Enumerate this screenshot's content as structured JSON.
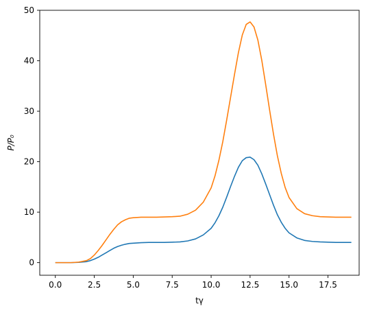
{
  "chart_data": {
    "type": "line",
    "title": "",
    "xlabel": "tγ",
    "ylabel": "P/P₀",
    "xlim": [
      -1,
      19.5
    ],
    "ylim": [
      -2.5,
      50
    ],
    "grid": false,
    "legend": "none",
    "x_ticks": [
      0,
      2.5,
      5,
      7.5,
      10,
      12.5,
      15,
      17.5
    ],
    "x_tick_labels": [
      "0.0",
      "2.5",
      "5.0",
      "7.5",
      "10.0",
      "12.5",
      "15.0",
      "17.5"
    ],
    "y_ticks": [
      0,
      10,
      20,
      30,
      40,
      50
    ],
    "y_tick_labels": [
      "0",
      "10",
      "20",
      "30",
      "40",
      "50"
    ],
    "x": [
      0,
      0.5,
      1,
      1.5,
      2,
      2.25,
      2.5,
      2.75,
      3,
      3.25,
      3.5,
      3.75,
      4,
      4.25,
      4.5,
      4.75,
      5,
      5.5,
      6,
      6.5,
      7,
      7.5,
      8,
      8.5,
      9,
      9.5,
      10,
      10.25,
      10.5,
      10.75,
      11,
      11.25,
      11.5,
      11.75,
      12,
      12.25,
      12.5,
      12.75,
      13,
      13.25,
      13.5,
      13.75,
      14,
      14.25,
      14.5,
      14.75,
      15,
      15.5,
      16,
      16.5,
      17,
      17.5,
      18,
      18.5,
      19
    ],
    "series": [
      {
        "color": "#1f77b4",
        "values": [
          0,
          0,
          0,
          0.05,
          0.2,
          0.4,
          0.7,
          1.05,
          1.5,
          1.95,
          2.4,
          2.85,
          3.2,
          3.45,
          3.65,
          3.8,
          3.85,
          3.95,
          4.0,
          4.0,
          4.0,
          4.05,
          4.1,
          4.3,
          4.7,
          5.5,
          6.8,
          7.9,
          9.3,
          11.0,
          13.0,
          15.1,
          17.1,
          18.9,
          20.2,
          20.8,
          20.9,
          20.4,
          19.3,
          17.6,
          15.6,
          13.5,
          11.4,
          9.5,
          8.0,
          6.8,
          5.9,
          4.9,
          4.4,
          4.2,
          4.1,
          4.05,
          4.0,
          4.0,
          4.0
        ]
      },
      {
        "color": "#ff7f0e",
        "values": [
          0,
          0,
          0,
          0.1,
          0.4,
          0.8,
          1.5,
          2.4,
          3.4,
          4.5,
          5.6,
          6.6,
          7.5,
          8.1,
          8.5,
          8.8,
          8.9,
          9.0,
          9.0,
          9.0,
          9.05,
          9.1,
          9.2,
          9.6,
          10.4,
          12.0,
          14.8,
          17.2,
          20.3,
          24.0,
          28.3,
          32.8,
          37.3,
          41.6,
          45.1,
          47.2,
          47.7,
          46.7,
          44.1,
          40.1,
          35.3,
          30.3,
          25.5,
          21.2,
          17.7,
          14.9,
          12.9,
          10.7,
          9.7,
          9.3,
          9.1,
          9.05,
          9.0,
          9.0,
          9.0
        ]
      }
    ]
  }
}
